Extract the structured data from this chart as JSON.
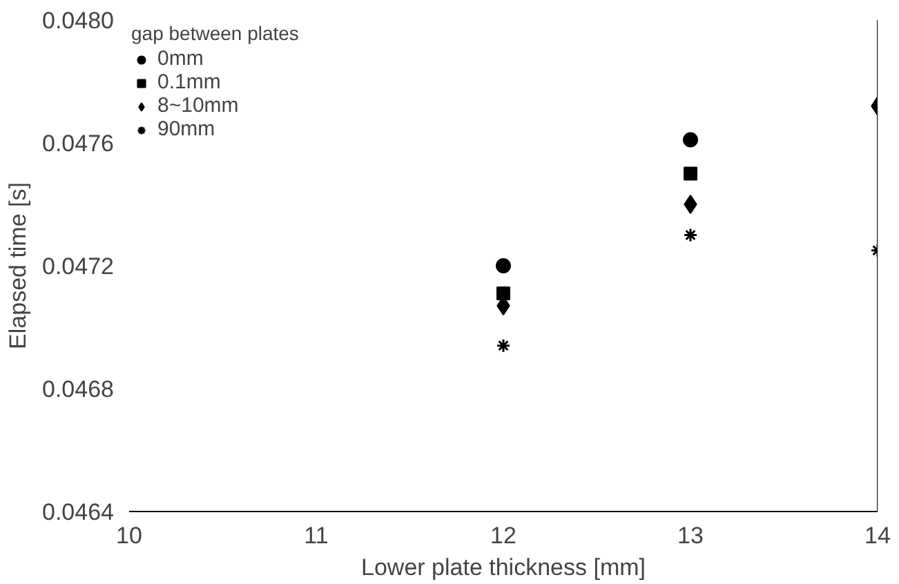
{
  "chart_data": {
    "type": "scatter",
    "xlabel": "Lower plate thickness [mm]",
    "ylabel": "Elapsed time [s]",
    "legend_title": "gap between plates",
    "x": [
      12,
      13,
      14
    ],
    "series": [
      {
        "name": "0mm",
        "color": "#000000",
        "marker": "circle",
        "values": [
          0.0472,
          0.04761,
          null
        ]
      },
      {
        "name": "0.1mm",
        "color": "#000000",
        "marker": "square",
        "values": [
          0.04711,
          0.0475,
          null
        ]
      },
      {
        "name": "8~10mm",
        "color": "#000000",
        "marker": "diamond",
        "values": [
          0.04707,
          0.0474,
          0.04772
        ]
      },
      {
        "name": "90mm",
        "color": "#000000",
        "marker": "cross",
        "values": [
          0.04694,
          0.0473,
          0.04725
        ]
      }
    ],
    "xlim": [
      10,
      14
    ],
    "xticks": [
      10,
      11,
      12,
      13,
      14
    ],
    "ylim": [
      0.0464,
      0.048
    ],
    "yticks": [
      0.0464,
      0.0468,
      0.0472,
      0.0476,
      {
        "value": 0.048,
        "label": "0.0480"
      }
    ],
    "ref_lines": [
      {
        "axis": "x",
        "value": 14
      }
    ],
    "grid": false,
    "legend": "top left"
  }
}
